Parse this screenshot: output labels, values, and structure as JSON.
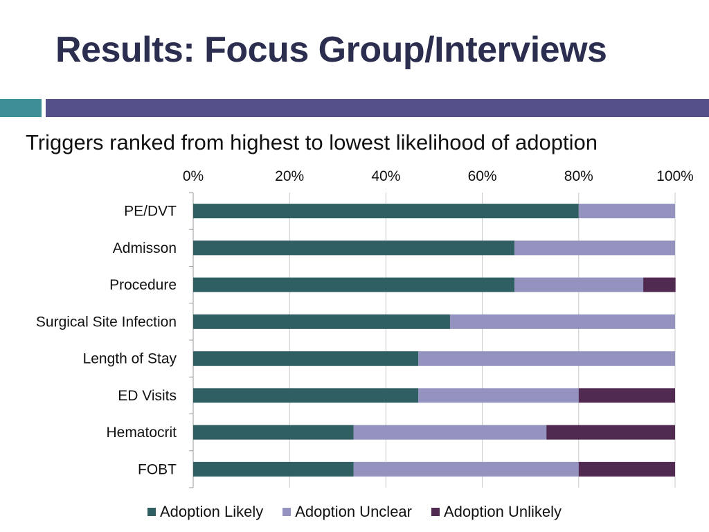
{
  "slide": {
    "title": "Results: Focus Group/Interviews",
    "subtitle": "Triggers ranked from highest to lowest likelihood of adoption",
    "accent_colors": {
      "teal": "#3e8f95",
      "purple": "#534f88"
    }
  },
  "chart_data": {
    "type": "bar",
    "orientation": "horizontal",
    "stacked": "percent",
    "title": "",
    "xlabel": "",
    "ylabel": "",
    "xlim": [
      0,
      100
    ],
    "x_ticks": [
      "0%",
      "20%",
      "40%",
      "60%",
      "80%",
      "100%"
    ],
    "categories": [
      "PE/DVT",
      "Admisson",
      "Procedure",
      "Surgical Site Infection",
      "Length of Stay",
      "ED Visits",
      "Hematocrit",
      "FOBT"
    ],
    "series": [
      {
        "name": "Adoption Likely",
        "color": "#2f5f62",
        "values": [
          80,
          66.7,
          66.7,
          53.3,
          46.7,
          46.7,
          33.3,
          33.3
        ]
      },
      {
        "name": "Adoption Unclear",
        "color": "#9492bf",
        "values": [
          20,
          33.3,
          26.7,
          46.7,
          53.3,
          33.3,
          40,
          46.7
        ]
      },
      {
        "name": "Adoption Unlikely",
        "color": "#512a52",
        "values": [
          0,
          0,
          6.7,
          0,
          0,
          20,
          26.7,
          20
        ]
      }
    ],
    "grid": true,
    "legend_position": "bottom"
  }
}
